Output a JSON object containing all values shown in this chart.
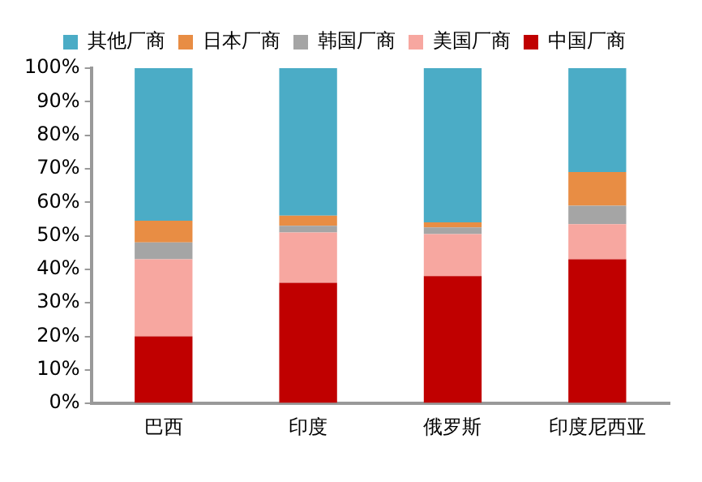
{
  "chart_data": {
    "type": "bar",
    "stacked": true,
    "legend": "top",
    "grid": false,
    "categories": [
      "巴西",
      "印度",
      "俄罗斯",
      "印度尼西亚"
    ],
    "series": [
      {
        "name": "中国厂商",
        "color": "#c00000",
        "values": [
          20,
          36,
          38,
          43
        ]
      },
      {
        "name": "美国厂商",
        "color": "#f7a7a0",
        "values": [
          23,
          15,
          12.5,
          10.5
        ]
      },
      {
        "name": "韩国厂商",
        "color": "#a5a5a5",
        "values": [
          5,
          2,
          2,
          5.5
        ]
      },
      {
        "name": "日本厂商",
        "color": "#e88d44",
        "values": [
          6.5,
          3,
          1.5,
          10
        ]
      },
      {
        "name": "其他厂商",
        "color": "#4bacc6",
        "values": [
          45.5,
          44,
          46,
          31
        ]
      }
    ],
    "ylim": [
      0,
      100
    ],
    "yticks": [
      {
        "value": 0,
        "label": "0%"
      },
      {
        "value": 10,
        "label": "10%"
      },
      {
        "value": 20,
        "label": "20%"
      },
      {
        "value": 30,
        "label": "30%"
      },
      {
        "value": 40,
        "label": "40%"
      },
      {
        "value": 50,
        "label": "50%"
      },
      {
        "value": 60,
        "label": "60%"
      },
      {
        "value": 70,
        "label": "70%"
      },
      {
        "value": 80,
        "label": "80%"
      },
      {
        "value": 90,
        "label": "90%"
      },
      {
        "value": 100,
        "label": "100%"
      }
    ]
  }
}
